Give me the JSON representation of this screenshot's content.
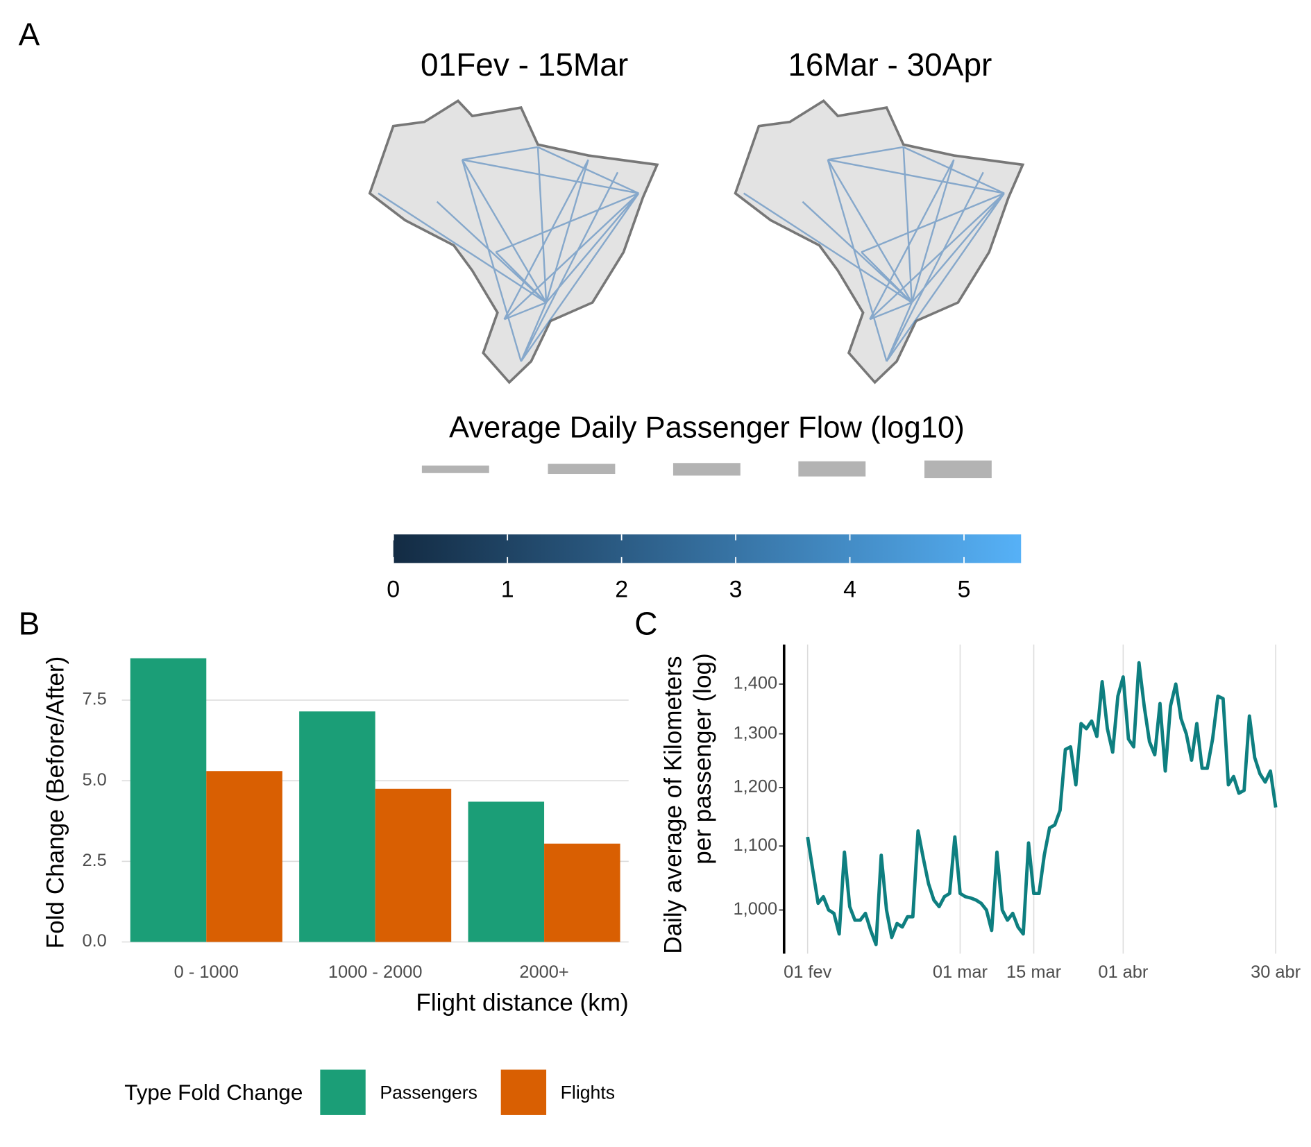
{
  "panel_labels": [
    "A",
    "B",
    "C"
  ],
  "chart_data": [
    {
      "type": "flow-map",
      "titles": [
        "01Fev - 15Mar",
        "16Mar - 30Apr"
      ],
      "legend_title": "Average Daily Passenger Flow (log10)",
      "colorbar": {
        "colors": [
          "#132B43",
          "#56B1F7"
        ],
        "lim": [
          0,
          5.5
        ],
        "ticks": [
          0,
          1,
          2,
          3,
          4,
          5
        ]
      }
    },
    {
      "type": "bar",
      "x_label": "Flight distance (km)",
      "y_label": "Fold Change (Before/After)",
      "legend_title": "Type Fold Change",
      "categories": [
        "0 - 1000",
        "1000 - 2000",
        "2000+"
      ],
      "series": [
        {
          "name": "Passengers",
          "color": "#1b9e77",
          "values": [
            8.8,
            7.15,
            4.35
          ]
        },
        {
          "name": "Flights",
          "color": "#d95f02",
          "values": [
            5.3,
            4.75,
            3.05
          ]
        }
      ],
      "ylim": [
        0,
        9.2
      ],
      "yticks": [
        {
          "value": 0,
          "label": "0.0"
        },
        2.5,
        {
          "value": 5,
          "label": "5.0"
        },
        7.5
      ],
      "grid": true
    },
    {
      "type": "line",
      "y_label": [
        "Daily average of Kilometers",
        "per passenger (log)"
      ],
      "color": "#0e7f80",
      "x": [
        "01 fev",
        "02 fev",
        "03 fev",
        "04 fev",
        "05 fev",
        "06 fev",
        "07 fev",
        "08 fev",
        "09 fev",
        "10 fev",
        "11 fev",
        "12 fev",
        "13 fev",
        "14 fev",
        "15 fev",
        "16 fev",
        "17 fev",
        "18 fev",
        "19 fev",
        "20 fev",
        "21 fev",
        "22 fev",
        "23 fev",
        "24 fev",
        "25 fev",
        "26 fev",
        "27 fev",
        "28 fev",
        "29 fev",
        "01 mar",
        "02 mar",
        "03 mar",
        "04 mar",
        "05 mar",
        "06 mar",
        "07 mar",
        "08 mar",
        "09 mar",
        "10 mar",
        "11 mar",
        "12 mar",
        "13 mar",
        "14 mar",
        "15 mar",
        "16 mar",
        "17 mar",
        "18 mar",
        "19 mar",
        "20 mar",
        "21 mar",
        "22 mar",
        "23 mar",
        "24 mar",
        "25 mar",
        "26 mar",
        "27 mar",
        "28 mar",
        "29 mar",
        "30 mar",
        "31 mar",
        "01 abr",
        "02 abr",
        "03 abr",
        "04 abr",
        "05 abr",
        "06 abr",
        "07 abr",
        "08 abr",
        "09 abr",
        "10 abr",
        "11 abr",
        "12 abr",
        "13 abr",
        "14 abr",
        "15 abr",
        "16 abr",
        "17 abr",
        "18 abr",
        "19 abr",
        "20 abr",
        "21 abr",
        "22 abr",
        "23 abr",
        "24 abr",
        "25 abr",
        "26 abr",
        "27 abr",
        "28 abr",
        "29 abr",
        "30 abr"
      ],
      "values": [
        1115,
        1060,
        1010,
        1020,
        1000,
        995,
        965,
        1090,
        1005,
        985,
        985,
        995,
        970,
        950,
        1085,
        1000,
        960,
        980,
        975,
        990,
        990,
        1125,
        1080,
        1040,
        1015,
        1005,
        1020,
        1025,
        1115,
        1025,
        1020,
        1018,
        1015,
        1010,
        1000,
        970,
        1090,
        1000,
        985,
        995,
        975,
        965,
        1105,
        1025,
        1025,
        1085,
        1130,
        1135,
        1160,
        1270,
        1275,
        1205,
        1320,
        1310,
        1325,
        1295,
        1405,
        1310,
        1265,
        1375,
        1415,
        1290,
        1275,
        1445,
        1355,
        1285,
        1260,
        1360,
        1230,
        1355,
        1400,
        1330,
        1300,
        1250,
        1320,
        1235,
        1235,
        1290,
        1375,
        1370,
        1205,
        1220,
        1190,
        1195,
        1335,
        1255,
        1225,
        1210,
        1230,
        1165
      ],
      "xticks": [
        "01 fev",
        "01 mar",
        "15 mar",
        "01 abr",
        "30 abr"
      ],
      "log_y": true,
      "ylim": [
        937,
        1485
      ],
      "yticks": [
        {
          "value": 1000,
          "label": "1,000"
        },
        {
          "value": 1100,
          "label": "1,100"
        },
        {
          "value": 1200,
          "label": "1,200"
        },
        {
          "value": 1300,
          "label": "1,300"
        },
        {
          "value": 1400,
          "label": "1,400"
        }
      ],
      "grid": true
    }
  ]
}
